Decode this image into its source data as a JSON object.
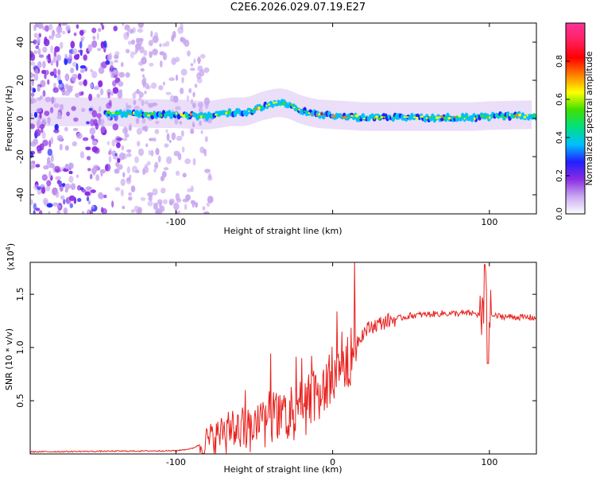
{
  "figure_title": "C2E6.2026.029.07.19.E27",
  "chart_data": [
    {
      "type": "heatmap",
      "name": "spectrogram",
      "xlabel": "Height of straight line (km)",
      "ylabel": "Frequency (Hz)",
      "xlim": [
        -193,
        130
      ],
      "ylim": [
        -50,
        50
      ],
      "xticks": [
        -100,
        0,
        100
      ],
      "xtick_labels": [
        "-100",
        "",
        "100"
      ],
      "yticks": [
        -40,
        -20,
        0,
        20,
        40
      ],
      "ytick_labels": [
        "-40",
        "-20",
        "0",
        "20",
        "40"
      ],
      "ridge_path": [
        [
          -193,
          3
        ],
        [
          -140,
          3
        ],
        [
          -120,
          2
        ],
        [
          -100,
          2
        ],
        [
          -80,
          1
        ],
        [
          -65,
          3
        ],
        [
          -55,
          3
        ],
        [
          -45,
          6
        ],
        [
          -35,
          8
        ],
        [
          -28,
          7
        ],
        [
          -20,
          4
        ],
        [
          -10,
          2
        ],
        [
          0,
          1.5
        ],
        [
          10,
          1
        ],
        [
          20,
          0.5
        ],
        [
          50,
          0.5
        ],
        [
          90,
          0.5
        ],
        [
          100,
          1
        ],
        [
          130,
          1.5
        ]
      ],
      "colorbar": {
        "label": "Normalized spectral amplitude",
        "range": [
          0,
          1
        ],
        "ticks": [
          0.0,
          0.2,
          0.4,
          0.6,
          0.8
        ],
        "tick_labels": [
          "0.0",
          "0.2",
          "0.4",
          "0.6",
          "0.8"
        ],
        "colors": [
          "#ffffff",
          "#c8a8f0",
          "#8a2be2",
          "#2020ff",
          "#00c0ff",
          "#00e080",
          "#40e000",
          "#ffff00",
          "#ff8000",
          "#ff0000",
          "#ff2060",
          "#ff3399"
        ]
      }
    },
    {
      "type": "line",
      "name": "snr",
      "xlabel": "Height of straight line (km)",
      "ylabel": "SNR (10 * v/v)",
      "y_multiplier": "(x10",
      "y_multiplier_exp": "4",
      "y_multiplier_close": ")",
      "xlim": [
        -193,
        130
      ],
      "ylim": [
        0,
        1.8
      ],
      "xticks": [
        -100,
        0,
        100
      ],
      "xtick_labels": [
        "-100",
        "0",
        "100"
      ],
      "yticks": [
        0.5,
        1.0,
        1.5
      ],
      "ytick_labels": [
        "0.5",
        "1.0",
        "1.5"
      ],
      "line_color": "#e8201c",
      "trend": [
        [
          -193,
          0.02
        ],
        [
          -100,
          0.03
        ],
        [
          -90,
          0.05
        ],
        [
          -80,
          0.12
        ],
        [
          -70,
          0.2
        ],
        [
          -60,
          0.25
        ],
        [
          -50,
          0.32
        ],
        [
          -40,
          0.38
        ],
        [
          -30,
          0.4
        ],
        [
          -20,
          0.45
        ],
        [
          -10,
          0.55
        ],
        [
          -5,
          0.65
        ],
        [
          0,
          0.75
        ],
        [
          5,
          0.85
        ],
        [
          10,
          0.92
        ],
        [
          15,
          1.05
        ],
        [
          20,
          1.15
        ],
        [
          25,
          1.2
        ],
        [
          35,
          1.25
        ],
        [
          50,
          1.3
        ],
        [
          70,
          1.32
        ],
        [
          90,
          1.32
        ],
        [
          95,
          1.3
        ],
        [
          100,
          1.3
        ],
        [
          110,
          1.29
        ],
        [
          130,
          1.28
        ]
      ],
      "peaks": [
        [
          -60,
          0.62
        ],
        [
          -48,
          0.82
        ],
        [
          -35,
          0.88
        ],
        [
          -25,
          0.96
        ],
        [
          -17,
          1.05
        ],
        [
          -10,
          1.22
        ],
        [
          -7,
          1.2
        ],
        [
          0,
          1.18
        ],
        [
          8,
          1.22
        ],
        [
          97,
          1.78
        ],
        [
          99,
          0.85
        ]
      ]
    }
  ]
}
